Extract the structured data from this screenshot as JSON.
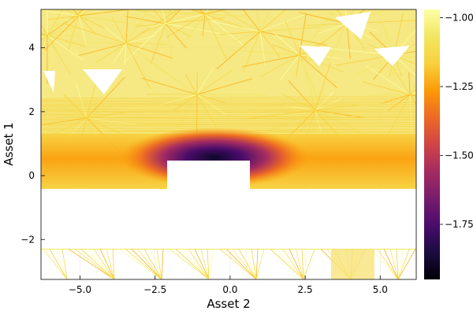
{
  "chart_data": {
    "type": "contour",
    "title": "",
    "xlabel": "Asset 2",
    "ylabel": "Asset 1",
    "xlim": [
      -6.3,
      6.2
    ],
    "ylim": [
      -3.25,
      5.2
    ],
    "xticks": [
      -5.0,
      -2.5,
      0.0,
      2.5,
      5.0
    ],
    "xtick_labels": [
      "−5.0",
      "−2.5",
      "0.0",
      "2.5",
      "5.0"
    ],
    "yticks": [
      -2,
      0,
      2,
      4
    ],
    "ytick_labels": [
      "−2",
      "0",
      "2",
      "4"
    ],
    "grid": true,
    "colormap": "inferno",
    "colorbar": {
      "range": [
        -1.95,
        -0.97
      ],
      "ticks": [
        -1.0,
        -1.25,
        -1.5,
        -1.75
      ],
      "tick_labels": [
        "−1.00",
        "−1.25",
        "−1.50",
        "−1.75"
      ]
    },
    "minimum": {
      "x": -0.75,
      "y": 0.55,
      "value": -1.95
    },
    "annotations": []
  }
}
